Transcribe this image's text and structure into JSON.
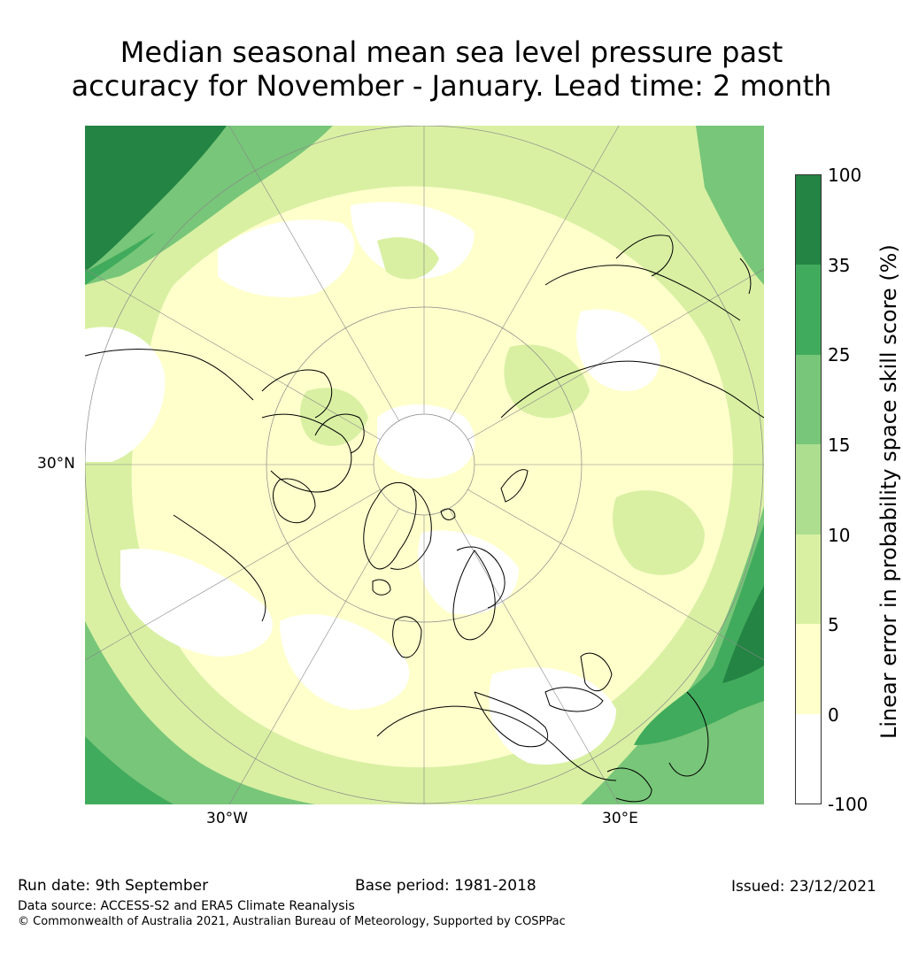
{
  "title_line1": "Median seasonal mean sea level pressure past",
  "title_line2": "accuracy for November - January. Lead time: 2 month",
  "map": {
    "projection": "polar stereographic (north)",
    "lat_labels": [
      "30°N"
    ],
    "lon_labels": [
      "30°W",
      "30°E"
    ],
    "colors": {
      "land_outline": "#000000",
      "graticule": "#888888",
      "ocean_bg": "#ffffcc"
    }
  },
  "colorbar": {
    "label": "Linear error in probability space skill score (%)",
    "ticks": [
      "100",
      "35",
      "25",
      "15",
      "10",
      "5",
      "0",
      "-100"
    ],
    "classes": [
      {
        "range": "35 to 100",
        "color": "#238443"
      },
      {
        "range": "25 to 35",
        "color": "#41ab5d"
      },
      {
        "range": "15 to 25",
        "color": "#78c679"
      },
      {
        "range": "10 to 15",
        "color": "#addd8e"
      },
      {
        "range": "5 to 10",
        "color": "#d9f0a3"
      },
      {
        "range": "0 to 5",
        "color": "#ffffcc"
      },
      {
        "range": "-100 to 0",
        "color": "#ffffff"
      }
    ]
  },
  "footer": {
    "run_date": "Run date: 9th September",
    "base_period": "Base period: 1981-2018",
    "issued": "Issued: 23/12/2021",
    "data_source": "Data source: ACCESS-S2 and ERA5 Climate Reanalysis",
    "copyright": "© Commonwealth of Australia 2021, Australian Bureau of Meteorology, Supported by COSPPac"
  }
}
